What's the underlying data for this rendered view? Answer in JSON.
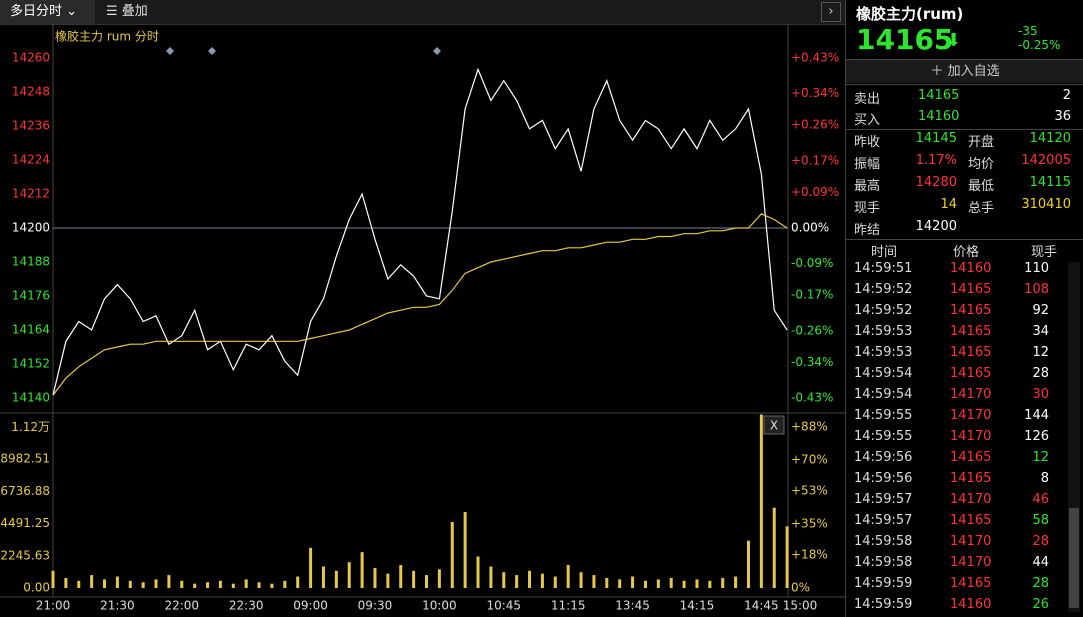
{
  "toolbar": {
    "tab": "多日分时",
    "overlay": "叠加"
  },
  "chart_data": [
    {
      "type": "line",
      "title": "橡胶主力 rum 分时",
      "x": [
        0,
        2,
        4,
        6,
        8,
        10,
        12,
        14,
        16,
        18,
        20,
        22,
        24,
        26,
        28,
        30,
        32,
        34,
        36,
        38,
        40,
        42,
        44,
        46,
        48,
        50,
        52,
        54,
        56,
        58,
        60,
        62,
        64,
        66,
        68,
        70,
        72,
        74,
        76,
        78,
        80,
        82,
        84,
        86,
        88,
        90,
        92,
        94,
        96,
        98,
        100,
        102,
        104,
        106,
        108,
        110,
        112,
        114
      ],
      "series": [
        {
          "name": "price",
          "color": "#ffffff",
          "values": [
            14141,
            14160,
            14167,
            14164,
            14175,
            14180,
            14175,
            14167,
            14169,
            14159,
            14162,
            14171,
            14157,
            14160,
            14150,
            14159,
            14157,
            14162,
            14153,
            14148,
            14167,
            14175,
            14190,
            14203,
            14212,
            14196,
            14182,
            14187,
            14183,
            14176,
            14175,
            14206,
            14242,
            14256,
            14245,
            14252,
            14245,
            14235,
            14238,
            14228,
            14235,
            14220,
            14242,
            14252,
            14238,
            14231,
            14238,
            14235,
            14228,
            14235,
            14228,
            14238,
            14231,
            14235,
            14242,
            14219,
            14171,
            14164
          ]
        },
        {
          "name": "average",
          "color": "#e6c84a",
          "values": [
            14141,
            14147,
            14151,
            14154,
            14157,
            14158,
            14159,
            14159,
            14160,
            14160,
            14160,
            14160,
            14160,
            14160,
            14160,
            14160,
            14160,
            14160,
            14160,
            14160,
            14161,
            14162,
            14163,
            14164,
            14166,
            14168,
            14170,
            14171,
            14172,
            14172,
            14173,
            14178,
            14184,
            14186,
            14188,
            14189,
            14190,
            14191,
            14192,
            14192,
            14193,
            14193,
            14194,
            14195,
            14195,
            14196,
            14196,
            14197,
            14197,
            14198,
            14198,
            14199,
            14199,
            14200,
            14200,
            14205,
            14203,
            14200
          ]
        }
      ],
      "xlim": [
        0,
        116
      ],
      "ylim": [
        14134.7,
        14270.6
      ],
      "yticks": [
        14260,
        14248,
        14236,
        14224,
        14212,
        14200,
        14188,
        14176,
        14164,
        14152,
        14140
      ],
      "y2lim": [
        -0.468,
        0.506
      ],
      "y2ticks": [
        {
          "value": 0.43,
          "label": "+0.43%"
        },
        {
          "value": 0.34,
          "label": "+0.34%"
        },
        {
          "value": 0.26,
          "label": "+0.26%"
        },
        {
          "value": 0.17,
          "label": "+0.17%"
        },
        {
          "value": 0.09,
          "label": "+0.09%"
        },
        {
          "value": 0,
          "label": "0.00%"
        },
        {
          "value": -0.09,
          "label": "-0.09%"
        },
        {
          "value": -0.17,
          "label": "-0.17%"
        },
        {
          "value": -0.26,
          "label": "-0.26%"
        },
        {
          "value": -0.34,
          "label": "-0.34%"
        },
        {
          "value": -0.43,
          "label": "-0.43%"
        }
      ]
    },
    {
      "type": "bar",
      "color": "#e6c84a",
      "x": [
        0,
        2,
        4,
        6,
        8,
        10,
        12,
        14,
        16,
        18,
        20,
        22,
        24,
        26,
        28,
        30,
        32,
        34,
        36,
        38,
        40,
        42,
        44,
        46,
        48,
        50,
        52,
        54,
        56,
        58,
        60,
        62,
        64,
        66,
        68,
        70,
        72,
        74,
        76,
        78,
        80,
        82,
        84,
        86,
        88,
        90,
        92,
        94,
        96,
        98,
        100,
        102,
        104,
        106,
        108,
        110,
        112,
        114
      ],
      "values": [
        1200,
        700,
        500,
        900,
        600,
        800,
        500,
        400,
        600,
        900,
        500,
        300,
        400,
        500,
        300,
        600,
        400,
        300,
        500,
        800,
        2800,
        1500,
        1200,
        1800,
        2500,
        1400,
        1000,
        1600,
        1200,
        900,
        1300,
        4600,
        5300,
        2200,
        1500,
        1100,
        900,
        1200,
        1000,
        800,
        1600,
        1100,
        900,
        700,
        600,
        800,
        500,
        600,
        700,
        500,
        600,
        500,
        700,
        800,
        3300,
        12100,
        5600,
        4300
      ],
      "xlim": [
        0,
        116
      ],
      "xticks": [
        {
          "value": 0,
          "label": "21:00"
        },
        {
          "value": 10,
          "label": "21:30"
        },
        {
          "value": 20,
          "label": "22:00"
        },
        {
          "value": 30,
          "label": "22:30"
        },
        {
          "value": 40,
          "label": "09:00"
        },
        {
          "value": 50,
          "label": "09:30"
        },
        {
          "value": 60,
          "label": "10:00"
        },
        {
          "value": 70,
          "label": "10:45"
        },
        {
          "value": 80,
          "label": "11:15"
        },
        {
          "value": 90,
          "label": "13:45"
        },
        {
          "value": 100,
          "label": "14:15"
        },
        {
          "value": 110,
          "label": "14:45"
        },
        {
          "value": 116,
          "label": "15:00"
        }
      ],
      "ylim": [
        0,
        12205
      ],
      "yticks": [
        {
          "value": 11200,
          "label": "1.12万"
        },
        8982.51,
        6736.88,
        4491.25,
        2245.63,
        {
          "value": 0,
          "label": "0.00"
        }
      ],
      "y2lim": [
        0,
        95.7
      ],
      "y2ticks": [
        {
          "value": 88,
          "label": "+88%"
        },
        {
          "value": 70,
          "label": "+70%"
        },
        {
          "value": 53,
          "label": "+53%"
        },
        {
          "value": 35,
          "label": "+35%"
        },
        {
          "value": 18,
          "label": "+18%"
        },
        {
          "value": 0,
          "label": "0%"
        }
      ]
    }
  ],
  "quote": {
    "title": "橡胶主力(rum)",
    "price": "14165",
    "change": "-35",
    "change_pct": "-0.25%",
    "add_button": "加入自选",
    "orders": [
      {
        "label": "卖出",
        "price": "14165",
        "volume": "2"
      },
      {
        "label": "买入",
        "price": "14160",
        "volume": "36"
      }
    ],
    "stats": [
      {
        "label": "昨收",
        "value": "14145",
        "color": "#2ee52e"
      },
      {
        "label": "开盘",
        "value": "14120",
        "color": "#2ee52e"
      },
      {
        "label": "振幅",
        "value": "1.17%",
        "color": "#ff3333"
      },
      {
        "label": "均价",
        "value": "142005",
        "color": "#ff3333"
      },
      {
        "label": "最高",
        "value": "14280",
        "color": "#ff3333"
      },
      {
        "label": "最低",
        "value": "14115",
        "color": "#2ee52e"
      },
      {
        "label": "现手",
        "value": "14",
        "color": "#f0d020"
      },
      {
        "label": "总手",
        "value": "310410",
        "color": "#f0d020"
      },
      {
        "label": "昨结",
        "value": "14200",
        "color": "#ffffff"
      }
    ]
  },
  "trades": {
    "header": [
      "时间",
      "价格",
      "现手"
    ],
    "rows": [
      {
        "time": "14:59:51",
        "price": "14160",
        "volume": "110",
        "color": "#ffffff"
      },
      {
        "time": "14:59:52",
        "price": "14165",
        "volume": "108",
        "color": "#ff3333"
      },
      {
        "time": "14:59:52",
        "price": "14165",
        "volume": "92",
        "color": "#ffffff"
      },
      {
        "time": "14:59:53",
        "price": "14165",
        "volume": "34",
        "color": "#ffffff"
      },
      {
        "time": "14:59:53",
        "price": "14165",
        "volume": "12",
        "color": "#ffffff"
      },
      {
        "time": "14:59:54",
        "price": "14165",
        "volume": "28",
        "color": "#ffffff"
      },
      {
        "time": "14:59:54",
        "price": "14170",
        "volume": "30",
        "color": "#ff3333"
      },
      {
        "time": "14:59:55",
        "price": "14170",
        "volume": "144",
        "color": "#ffffff"
      },
      {
        "time": "14:59:55",
        "price": "14170",
        "volume": "126",
        "color": "#ffffff"
      },
      {
        "time": "14:59:56",
        "price": "14165",
        "volume": "12",
        "color": "#2ee52e"
      },
      {
        "time": "14:59:56",
        "price": "14165",
        "volume": "8",
        "color": "#ffffff"
      },
      {
        "time": "14:59:57",
        "price": "14170",
        "volume": "46",
        "color": "#ff3333"
      },
      {
        "time": "14:59:57",
        "price": "14165",
        "volume": "58",
        "color": "#2ee52e"
      },
      {
        "time": "14:59:58",
        "price": "14170",
        "volume": "28",
        "color": "#ff3333"
      },
      {
        "time": "14:59:58",
        "price": "14170",
        "volume": "44",
        "color": "#ffffff"
      },
      {
        "time": "14:59:59",
        "price": "14165",
        "volume": "28",
        "color": "#2ee52e"
      },
      {
        "time": "14:59:59",
        "price": "14160",
        "volume": "26",
        "color": "#2ee52e"
      }
    ]
  }
}
